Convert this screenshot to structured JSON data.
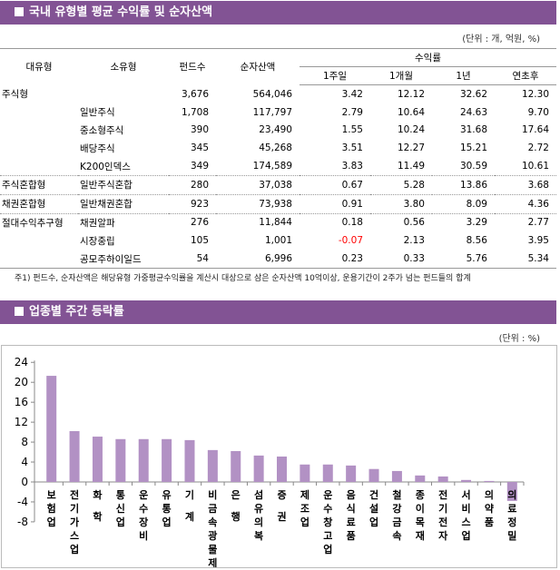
{
  "section1": {
    "title": "국내 유형별 평균 수익률 및 순자산액",
    "unit": "(단위 : 개, 억원, %)",
    "headers": {
      "major": "대유형",
      "minor": "소유형",
      "funds": "펀드수",
      "assets": "순자산액",
      "returns": "수익률",
      "w1": "1주일",
      "m1": "1개월",
      "y1": "1년",
      "ytd": "연초후"
    },
    "rows": [
      {
        "major": "주식형",
        "minor": "",
        "funds": "3,676",
        "assets": "564,046",
        "w1": "3.42",
        "m1": "12.12",
        "y1": "32.62",
        "ytd": "12.30",
        "sep": false
      },
      {
        "major": "",
        "minor": "일반주식",
        "funds": "1,708",
        "assets": "117,797",
        "w1": "2.79",
        "m1": "10.64",
        "y1": "24.63",
        "ytd": "9.70",
        "sep": false
      },
      {
        "major": "",
        "minor": "중소형주식",
        "funds": "390",
        "assets": "23,490",
        "w1": "1.55",
        "m1": "10.24",
        "y1": "31.68",
        "ytd": "17.64",
        "sep": false
      },
      {
        "major": "",
        "minor": "배당주식",
        "funds": "345",
        "assets": "45,268",
        "w1": "3.51",
        "m1": "12.27",
        "y1": "15.21",
        "ytd": "2.72",
        "sep": false
      },
      {
        "major": "",
        "minor": "K200인덱스",
        "funds": "349",
        "assets": "174,589",
        "w1": "3.83",
        "m1": "11.49",
        "y1": "30.59",
        "ytd": "10.61",
        "sep": false
      },
      {
        "major": "주식혼합형",
        "minor": "일반주식혼합",
        "funds": "280",
        "assets": "37,038",
        "w1": "0.67",
        "m1": "5.28",
        "y1": "13.86",
        "ytd": "3.68",
        "sep": true
      },
      {
        "major": "채권혼합형",
        "minor": "일반채권혼합",
        "funds": "923",
        "assets": "73,938",
        "w1": "0.91",
        "m1": "3.80",
        "y1": "8.09",
        "ytd": "4.36",
        "sep": true
      },
      {
        "major": "절대수익추구형",
        "minor": "채권알파",
        "funds": "276",
        "assets": "11,844",
        "w1": "0.18",
        "m1": "0.56",
        "y1": "3.29",
        "ytd": "2.77",
        "sep": true
      },
      {
        "major": "",
        "minor": "시장중립",
        "funds": "105",
        "assets": "1,001",
        "w1": "-0.07",
        "m1": "2.13",
        "y1": "8.56",
        "ytd": "3.95",
        "sep": false
      },
      {
        "major": "",
        "minor": "공모주하이일드",
        "funds": "54",
        "assets": "6,996",
        "w1": "0.23",
        "m1": "0.33",
        "y1": "5.76",
        "ytd": "5.34",
        "sep": false
      }
    ],
    "note": "주1) 펀드수, 순자산액은 해당유형 가중평균수익률을 계산시 대상으로 삼은 순자산액 10억이상, 운용기간이 2주가 넘는 펀드들의 합계"
  },
  "section2": {
    "title": "업종별 주간 등락률",
    "unit": "(단위 : %)"
  },
  "colors": {
    "header_bar": "#825394",
    "bar": "#b291c4",
    "negative_text": "#ff0000"
  },
  "chart_data": {
    "type": "bar",
    "categories": [
      "보험업",
      "전기가스업",
      "화학",
      "통신업",
      "운수장비",
      "유통업",
      "기계",
      "비금속광물제품",
      "은행",
      "섬유의복",
      "증권",
      "제조업",
      "운수창고업",
      "음식료품",
      "건설업",
      "철강금속",
      "종이목재",
      "전기전자",
      "서비스업",
      "의약품",
      "의료정밀"
    ],
    "values": [
      21.3,
      10.2,
      9.1,
      8.6,
      8.6,
      8.6,
      8.4,
      6.4,
      6.2,
      5.3,
      5.1,
      3.5,
      3.5,
      3.3,
      2.6,
      2.2,
      1.3,
      1.1,
      0.4,
      0.2,
      -3.8
    ],
    "yticks": [
      24,
      20,
      16,
      12,
      8,
      4,
      0,
      -4,
      -8
    ],
    "ylim": [
      -8,
      24
    ],
    "grid": false
  }
}
